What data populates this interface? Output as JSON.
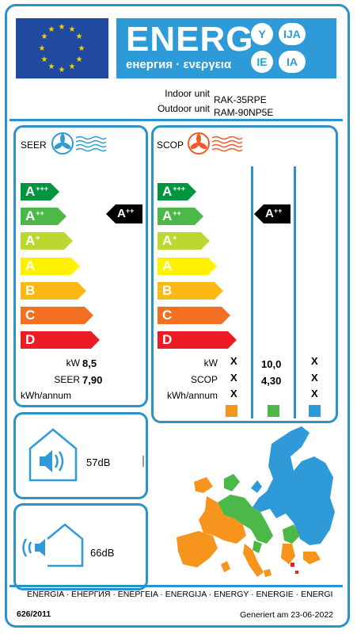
{
  "header": {
    "energy_title": "ENERG",
    "energy_subtitle": "енергия · ενεργεια",
    "lang_badges": [
      "Y",
      "IJA",
      "IE",
      "IA"
    ],
    "colors": {
      "eu_blue": "#1f4aa0",
      "eu_star": "#f3d300",
      "label_blue": "#2e9ad8"
    }
  },
  "units": {
    "indoor_label": "Indoor unit",
    "indoor_value": "RAK-35RPE",
    "outdoor_label": "Outdoor unit",
    "outdoor_value": "RAM-90NP5E"
  },
  "seer_panel": {
    "title": "SEER",
    "icon": "fan-cooling-icon",
    "classes": [
      {
        "letter": "A",
        "sup": "+++",
        "color": "#00963f"
      },
      {
        "letter": "A",
        "sup": "++",
        "color": "#4cb848"
      },
      {
        "letter": "A",
        "sup": "+",
        "color": "#bed630"
      },
      {
        "letter": "A",
        "sup": "",
        "color": "#fff200"
      },
      {
        "letter": "B",
        "sup": "",
        "color": "#fcb814"
      },
      {
        "letter": "C",
        "sup": "",
        "color": "#f36f21"
      },
      {
        "letter": "D",
        "sup": "",
        "color": "#ed1c24"
      }
    ],
    "rating": {
      "letter": "A",
      "sup": "++"
    },
    "rows": [
      {
        "label": "kW",
        "value": "8,5"
      },
      {
        "label": "SEER",
        "value": "7,90"
      },
      {
        "label": "kWh/annum",
        "value": ""
      }
    ]
  },
  "scop_panel": {
    "title": "SCOP",
    "icon": "fan-heating-icon",
    "rating": {
      "letter": "A",
      "sup": "++"
    },
    "rows": [
      {
        "label": "kW",
        "values": [
          "X",
          "10,0",
          "X"
        ]
      },
      {
        "label": "SCOP",
        "values": [
          "X",
          "4,30",
          "X"
        ]
      },
      {
        "label": "kWh/annum",
        "values": [
          "X",
          "",
          "X"
        ]
      }
    ],
    "climate_colors": [
      "#f7941d",
      "#4cb848",
      "#2e9ad8"
    ]
  },
  "noise": {
    "indoor": "57dB",
    "outdoor": "66dB"
  },
  "footer": {
    "languages": "ENERGIA · ЕНЕРГИЯ · ΕΝΕΡΓΕΙΑ · ENERGIJA · ENERGY · ENERGIE · ENERGI",
    "regulation": "626/2011",
    "generated": "Generiert am 23-06-2022"
  }
}
